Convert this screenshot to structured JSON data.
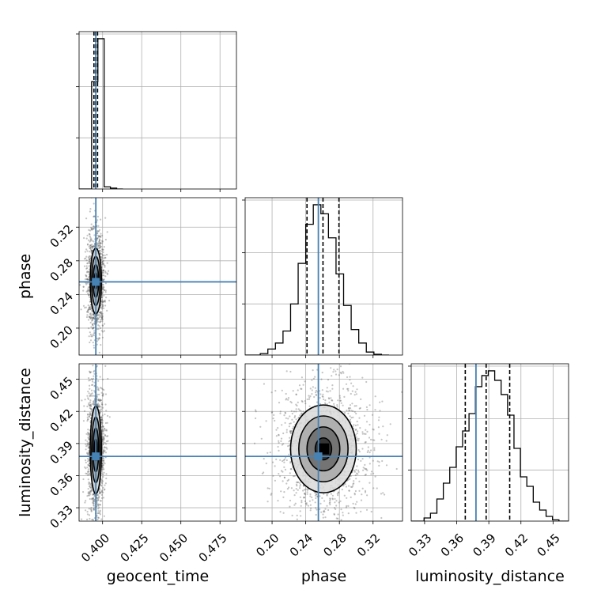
{
  "chart_data": {
    "type": "corner",
    "title": "",
    "grid": true,
    "colors": {
      "truth": "#4682b4",
      "hist": "#000000",
      "grid": "#b0b0b0",
      "scatter": "#555555"
    },
    "parameters": [
      "geocent_time",
      "phase",
      "luminosity_distance"
    ],
    "truths": {
      "geocent_time": 0.3957,
      "phase": 0.255,
      "luminosity_distance": 0.378
    },
    "ranges": {
      "geocent_time": [
        0.385,
        0.4855
      ],
      "phase": [
        0.168,
        0.355
      ],
      "luminosity_distance": [
        0.3175,
        0.4645
      ]
    },
    "ticks": {
      "geocent_time": [
        "0.400",
        "0.425",
        "0.450",
        "0.475"
      ],
      "phase": [
        "0.20",
        "0.24",
        "0.28",
        "0.32"
      ],
      "luminosity_distance": [
        "0.33",
        "0.36",
        "0.39",
        "0.42",
        "0.45"
      ]
    },
    "histograms": {
      "geocent_time": {
        "edges": [
          0.385,
          0.389,
          0.393,
          0.397,
          0.401,
          0.405,
          0.409,
          0.413
        ],
        "counts": [
          0,
          0,
          1.0,
          1.4,
          0.02,
          0.008,
          0
        ],
        "quantile_lines": [
          0.3945,
          0.3955,
          0.3968
        ]
      },
      "phase": {
        "edges": [
          0.168,
          0.177,
          0.186,
          0.195,
          0.204,
          0.213,
          0.222,
          0.231,
          0.24,
          0.249,
          0.258,
          0.267,
          0.276,
          0.285,
          0.294,
          0.303,
          0.312,
          0.321,
          0.33,
          0.339
        ],
        "counts": [
          0,
          0,
          0.01,
          0.04,
          0.08,
          0.16,
          0.34,
          0.61,
          0.87,
          1.0,
          0.94,
          0.78,
          0.54,
          0.33,
          0.17,
          0.08,
          0.02,
          0.005,
          0
        ],
        "quantile_lines": [
          0.2415,
          0.2605,
          0.2795
        ]
      },
      "luminosity_distance": {
        "edges": [
          0.3175,
          0.3235,
          0.3295,
          0.3355,
          0.3415,
          0.3475,
          0.3535,
          0.3595,
          0.3655,
          0.3715,
          0.3775,
          0.3835,
          0.3895,
          0.3955,
          0.4015,
          0.4075,
          0.4135,
          0.4195,
          0.4255,
          0.4315,
          0.4375,
          0.4435,
          0.4495,
          0.4555,
          0.4645
        ],
        "counts": [
          0,
          0,
          0.02,
          0.05,
          0.14,
          0.24,
          0.34,
          0.47,
          0.57,
          0.68,
          0.85,
          0.92,
          0.95,
          0.89,
          0.8,
          0.67,
          0.46,
          0.28,
          0.22,
          0.12,
          0.07,
          0.03,
          0.008,
          0
        ],
        "quantile_lines": [
          0.368,
          0.3875,
          0.4095
        ]
      }
    },
    "density_2d": {
      "geocent_time_vs_phase": {
        "center": [
          0.3957,
          0.256
        ],
        "sigma": [
          0.0018,
          0.0195
        ],
        "contour_levels_sigma": [
          0.5,
          1.0,
          1.5,
          2.0
        ]
      },
      "geocent_time_vs_luminosity_distance": {
        "center": [
          0.3957,
          0.384
        ],
        "sigma": [
          0.0018,
          0.0205
        ],
        "contour_levels_sigma": [
          0.5,
          1.0,
          1.5,
          2.0
        ]
      },
      "phase_vs_luminosity_distance": {
        "center": [
          0.261,
          0.385
        ],
        "sigma": [
          0.0195,
          0.0205
        ],
        "contour_levels_sigma": [
          0.5,
          1.0,
          1.5,
          2.0
        ]
      }
    }
  }
}
